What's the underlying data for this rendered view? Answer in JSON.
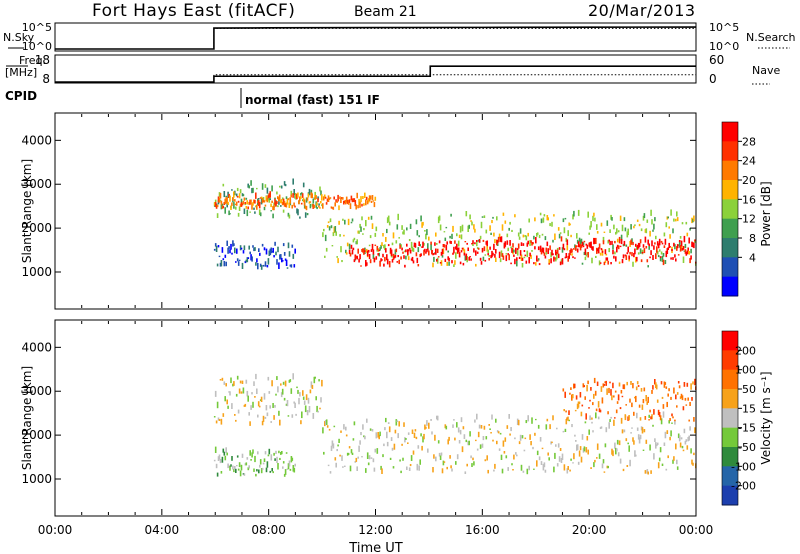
{
  "header": {
    "station": "Fort Hays East (fitACF)",
    "beam": "Beam 21",
    "date": "20/Mar/2013"
  },
  "nsky_panel": {
    "left_label": "N.Sky",
    "right_label": "N.Search",
    "left_ticks": [
      "10^5",
      "10^0"
    ],
    "right_ticks": [
      "10^5",
      "10^0"
    ]
  },
  "freq_panel": {
    "left_label_line1": "Freq.",
    "left_label_line2": "[MHz]",
    "right_label": "Nave",
    "left_ticks": [
      "18",
      "8"
    ],
    "right_ticks": [
      "60",
      "0"
    ]
  },
  "cpid": {
    "label": "CPID",
    "mode": "normal (fast) 151 IF"
  },
  "x_axis": {
    "label": "Time UT",
    "tick_labels": [
      "00:00",
      "04:00",
      "08:00",
      "12:00",
      "16:00",
      "20:00",
      "00:00"
    ],
    "tick_hours": [
      0,
      4,
      8,
      12,
      16,
      20,
      24
    ]
  },
  "colors": {
    "ground_scatter": "#bfbfbf",
    "power_scale": [
      "#0000ff",
      "#1f4fb4",
      "#2e7d6e",
      "#3f9f4f",
      "#8bd13a",
      "#ffb300",
      "#ff7a00",
      "#ff3000",
      "#ff0000"
    ],
    "velocity_scale": [
      "#1c3fae",
      "#2565a8",
      "#2f8a3c",
      "#74c93a",
      "#bfbfbf",
      "#f7a21a",
      "#ff7200",
      "#ff3c00",
      "#ff0000"
    ]
  },
  "chart_data": [
    {
      "type": "line",
      "panel": "N.Sky / N.Search",
      "x_unit": "hour UT",
      "series_note_left": "N.Sky",
      "series": [
        {
          "name": "N.Sky",
          "x": [
            0,
            5.95,
            5.95,
            8,
            12,
            16,
            20,
            24
          ],
          "values": [
            0,
            0,
            35000,
            40000,
            45000,
            50000,
            55000,
            60000
          ]
        },
        {
          "name": "N.Search",
          "x": [
            0,
            5.95,
            5.95,
            24
          ],
          "values": [
            0,
            0,
            30000,
            30000
          ]
        }
      ],
      "ylim": [
        1,
        100000
      ]
    },
    {
      "type": "line",
      "panel": "Freq. / Nave",
      "x_unit": "hour UT",
      "series": [
        {
          "name": "Freq.",
          "x": [
            0,
            5.95,
            5.95,
            14.05,
            14.05,
            24
          ],
          "values": [
            8,
            8,
            10.4,
            10.4,
            14.6,
            14.6
          ]
        },
        {
          "name": "Nave",
          "x": [
            0,
            5.95,
            5.95,
            24
          ],
          "values": [
            0,
            0,
            18,
            18
          ]
        }
      ],
      "ylim": [
        8,
        18
      ],
      "ylim_right": [
        0,
        60
      ]
    },
    {
      "type": "heatmap",
      "panel": "Power",
      "xlabel": "",
      "ylabel": "Slant Range [km]",
      "yticks": [
        1000,
        2000,
        3000,
        4000
      ],
      "ylim": [
        180,
        4600
      ],
      "xlim": [
        0,
        24
      ],
      "colorbar_label": "Power [dB]",
      "colorbar_ticks": [
        "28",
        "24",
        "20",
        "16",
        "12",
        "8",
        "4"
      ],
      "bands": [
        {
          "t": [
            5.95,
            9.0
          ],
          "r": [
            1050,
            1600
          ],
          "level": 1
        },
        {
          "t": [
            5.95,
            10.0
          ],
          "r": [
            2200,
            3000
          ],
          "level": 3
        },
        {
          "t": [
            5.95,
            12.0
          ],
          "r": [
            2400,
            2700
          ],
          "level": 6
        },
        {
          "t": [
            10.0,
            14.0
          ],
          "r": [
            1200,
            2200
          ],
          "level": 4
        },
        {
          "t": [
            11.0,
            14.0
          ],
          "r": [
            1100,
            1600
          ],
          "level": 8
        },
        {
          "t": [
            14.05,
            24.0
          ],
          "r": [
            1100,
            2300
          ],
          "level": 4
        },
        {
          "t": [
            14.05,
            24.0
          ],
          "r": [
            1150,
            1700
          ],
          "level": 8
        }
      ]
    },
    {
      "type": "heatmap",
      "panel": "Velocity",
      "xlabel": "Time UT",
      "ylabel": "Slant Range [km]",
      "yticks": [
        1000,
        2000,
        3000,
        4000
      ],
      "ylim": [
        180,
        4600
      ],
      "xlim": [
        0,
        24
      ],
      "colorbar_label": "Velocity [m s⁻¹]",
      "colorbar_ticks": [
        "200",
        "100",
        "50",
        "15",
        "-15",
        "-50",
        "-100",
        "-200"
      ],
      "bands": [
        {
          "t": [
            5.95,
            9.0
          ],
          "r": [
            1050,
            1600
          ],
          "level": 3
        },
        {
          "t": [
            5.95,
            10.0
          ],
          "r": [
            2200,
            3300
          ],
          "level": 4
        },
        {
          "t": [
            10.0,
            14.0
          ],
          "r": [
            1100,
            2300
          ],
          "level": 4
        },
        {
          "t": [
            14.05,
            24.0
          ],
          "r": [
            1100,
            2400
          ],
          "level": 4
        },
        {
          "t": [
            19.0,
            24.0
          ],
          "r": [
            2300,
            3200
          ],
          "level": 6
        }
      ]
    }
  ]
}
